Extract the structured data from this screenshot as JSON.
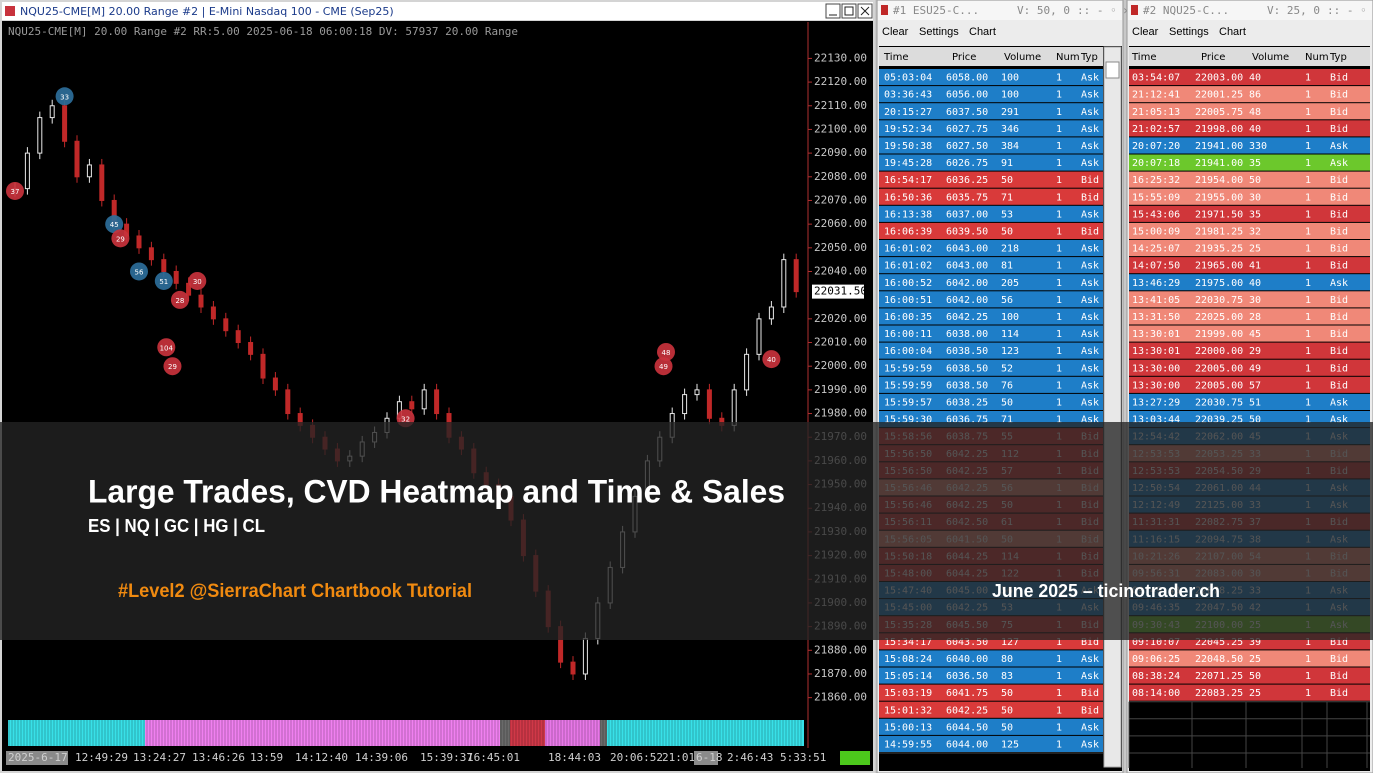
{
  "chart": {
    "title": "NQU25-CME[M]  20.00 Range #2 | E-Mini Nasdaq 100 - CME (Sep25)",
    "info": "NQU25-CME[M]  20.00 Range #2 RR:5.00 2025-06-18 06:00:18 DV: 57937 20.00 Range",
    "ylim": [
      21840,
      22142
    ],
    "yticks": [
      {
        "value": 22130,
        "label": "22130.00"
      },
      {
        "value": 22120,
        "label": "22120.00"
      },
      {
        "value": 22110,
        "label": "22110.00"
      },
      {
        "value": 22100,
        "label": "22100.00"
      },
      {
        "value": 22090,
        "label": "22090.00"
      },
      {
        "value": 22080,
        "label": "22080.00"
      },
      {
        "value": 22070,
        "label": "22070.00"
      },
      {
        "value": 22060,
        "label": "22060.00"
      },
      {
        "value": 22050,
        "label": "22050.00"
      },
      {
        "value": 22040,
        "label": "22040.00"
      },
      {
        "value": 22020,
        "label": "22020.00"
      },
      {
        "value": 22010,
        "label": "22010.00"
      },
      {
        "value": 22000,
        "label": "22000.00"
      },
      {
        "value": 21990,
        "label": "21990.00"
      },
      {
        "value": 21980,
        "label": "21980.00"
      },
      {
        "value": 21970,
        "label": "21970.00"
      },
      {
        "value": 21960,
        "label": "21960.00"
      },
      {
        "value": 21950,
        "label": "21950.00"
      },
      {
        "value": 21940,
        "label": "21940.00"
      },
      {
        "value": 21930,
        "label": "21930.00"
      },
      {
        "value": 21920,
        "label": "21920.00"
      },
      {
        "value": 21910,
        "label": "21910.00"
      },
      {
        "value": 21900,
        "label": "21900.00"
      },
      {
        "value": 21890,
        "label": "21890.00"
      },
      {
        "value": 21880,
        "label": "21880.00"
      },
      {
        "value": 21870,
        "label": "21870.00"
      },
      {
        "value": 21860,
        "label": "21860.00"
      }
    ],
    "last_price": {
      "value": 22031.5,
      "label": "22031.50"
    },
    "closes": [
      22075,
      22090,
      22105,
      22110,
      22095,
      22080,
      22085,
      22070,
      22060,
      22055,
      22050,
      22045,
      22040,
      22035,
      22030,
      22025,
      22020,
      22015,
      22010,
      22005,
      21995,
      21990,
      21980,
      21975,
      21970,
      21965,
      21960,
      21962,
      21968,
      21972,
      21978,
      21985,
      21982,
      21990,
      21980,
      21970,
      21965,
      21955,
      21950,
      21945,
      21935,
      21920,
      21905,
      21890,
      21875,
      21870,
      21885,
      21900,
      21915,
      21930,
      21945,
      21960,
      21970,
      21980,
      21988,
      21990,
      21978,
      21975,
      21990,
      22005,
      22020,
      22025,
      22045,
      22031.5
    ],
    "large_trades": [
      {
        "label": "37",
        "bar": 0,
        "price": 22074,
        "color": "#c8323c"
      },
      {
        "label": "33",
        "bar": 4,
        "price": 22114,
        "color": "#2c6e9a"
      },
      {
        "label": "45",
        "bar": 8,
        "price": 22060,
        "color": "#2c6e9a"
      },
      {
        "label": "29",
        "bar": 8.5,
        "price": 22054,
        "color": "#c8323c"
      },
      {
        "label": "56",
        "bar": 10,
        "price": 22040,
        "color": "#2c6e9a"
      },
      {
        "label": "51",
        "bar": 12,
        "price": 22036,
        "color": "#2c6e9a"
      },
      {
        "label": "28",
        "bar": 13.3,
        "price": 22028,
        "color": "#c8323c"
      },
      {
        "label": "30",
        "bar": 14.7,
        "price": 22036,
        "color": "#c8323c"
      },
      {
        "label": "104",
        "bar": 12.2,
        "price": 22008,
        "color": "#c8323c"
      },
      {
        "label": "29",
        "bar": 12.7,
        "price": 22000,
        "color": "#c8323c"
      },
      {
        "label": "32",
        "bar": 31.5,
        "price": 21978,
        "color": "#c8323c"
      },
      {
        "label": "48",
        "bar": 52.5,
        "price": 22006,
        "color": "#c8323c"
      },
      {
        "label": "49",
        "bar": 52.3,
        "price": 22000,
        "color": "#c8323c"
      },
      {
        "label": "40",
        "bar": 61,
        "price": 22003,
        "color": "#c8323c"
      }
    ],
    "time_labels": [
      "2025-6-17",
      "12:49:29",
      "13:24:27",
      "13:46:26",
      "13:59",
      "14:12:40",
      "14:39:06",
      "15:39:37",
      "16:45:01",
      "18:44:03",
      "20:06:52",
      "21:01",
      "6-18",
      "2:46:43",
      "5:33:51"
    ]
  },
  "overlay": {
    "title": "Large Trades, CVD Heatmap and Time & Sales",
    "subtitle": "ES | NQ | GC | HG | CL",
    "tag": "#Level2 @SierraChart Chartbook Tutorial",
    "credit": "June 2025 – ticinotrader.ch"
  },
  "tables": [
    {
      "title": "#1  ESU25-C...",
      "status": "V: 50, 0",
      "menu": [
        "Clear",
        "Settings",
        "Chart"
      ],
      "columns": [
        "Time",
        "Price",
        "Volume",
        "Num",
        "Typ"
      ],
      "rows": [
        [
          "05:03:04",
          "6058.00",
          "100",
          "1",
          "Ask"
        ],
        [
          "03:36:43",
          "6056.00",
          "100",
          "1",
          "Ask"
        ],
        [
          "20:15:27",
          "6037.50",
          "291",
          "1",
          "Ask"
        ],
        [
          "19:52:34",
          "6027.75",
          "346",
          "1",
          "Ask"
        ],
        [
          "19:50:38",
          "6027.50",
          "384",
          "1",
          "Ask"
        ],
        [
          "19:45:28",
          "6026.75",
          "91",
          "1",
          "Ask"
        ],
        [
          "16:54:17",
          "6036.25",
          "50",
          "1",
          "Bid"
        ],
        [
          "16:50:36",
          "6035.75",
          "71",
          "1",
          "Bid"
        ],
        [
          "16:13:38",
          "6037.00",
          "53",
          "1",
          "Ask"
        ],
        [
          "16:06:39",
          "6039.50",
          "50",
          "1",
          "Bid"
        ],
        [
          "16:01:02",
          "6043.00",
          "218",
          "1",
          "Ask"
        ],
        [
          "16:01:02",
          "6043.00",
          "81",
          "1",
          "Ask"
        ],
        [
          "16:00:52",
          "6042.00",
          "205",
          "1",
          "Ask"
        ],
        [
          "16:00:51",
          "6042.00",
          "56",
          "1",
          "Ask"
        ],
        [
          "16:00:35",
          "6042.25",
          "100",
          "1",
          "Ask"
        ],
        [
          "16:00:11",
          "6038.00",
          "114",
          "1",
          "Ask"
        ],
        [
          "16:00:04",
          "6038.50",
          "123",
          "1",
          "Ask"
        ],
        [
          "15:59:59",
          "6038.50",
          "52",
          "1",
          "Ask"
        ],
        [
          "15:59:59",
          "6038.50",
          "76",
          "1",
          "Ask"
        ],
        [
          "15:59:57",
          "6038.25",
          "50",
          "1",
          "Ask"
        ],
        [
          "15:59:30",
          "6036.75",
          "71",
          "1",
          "Ask"
        ],
        [
          "15:58:56",
          "6038.75",
          "55",
          "1",
          "Bid"
        ],
        [
          "15:56:50",
          "6042.25",
          "112",
          "1",
          "Bid"
        ],
        [
          "15:56:50",
          "6042.25",
          "57",
          "1",
          "Bid"
        ],
        [
          "15:56:46",
          "6042.25",
          "56",
          "1",
          "Bid"
        ],
        [
          "15:56:46",
          "6042.25",
          "50",
          "1",
          "Bid"
        ],
        [
          "15:56:11",
          "6042.50",
          "61",
          "1",
          "Bid"
        ],
        [
          "15:56:05",
          "6041.50",
          "50",
          "1",
          "Bid"
        ],
        [
          "15:50:18",
          "6044.25",
          "114",
          "1",
          "Bid"
        ],
        [
          "15:48:00",
          "6044.25",
          "122",
          "1",
          "Bid"
        ],
        [
          "15:47:40",
          "6045.00",
          "56",
          "1",
          "Ask"
        ],
        [
          "15:45:00",
          "6042.25",
          "53",
          "1",
          "Ask"
        ],
        [
          "15:35:28",
          "6045.50",
          "75",
          "1",
          "Bid"
        ],
        [
          "15:34:17",
          "6043.50",
          "127",
          "1",
          "Bid"
        ],
        [
          "15:08:24",
          "6040.00",
          "80",
          "1",
          "Ask"
        ],
        [
          "15:05:14",
          "6036.50",
          "83",
          "1",
          "Ask"
        ],
        [
          "15:03:19",
          "6041.75",
          "50",
          "1",
          "Bid"
        ],
        [
          "15:01:32",
          "6042.25",
          "50",
          "1",
          "Bid"
        ],
        [
          "15:00:13",
          "6044.50",
          "50",
          "1",
          "Ask"
        ],
        [
          "14:59:55",
          "6044.00",
          "125",
          "1",
          "Ask"
        ]
      ],
      "row_colors": [
        "#1e7ec8",
        "#1e7ec8",
        "#1e7ec8",
        "#1e7ec8",
        "#1e7ec8",
        "#1e7ec8",
        "#d93a3a",
        "#d93a3a",
        "#1e7ec8",
        "#d93a3a",
        "#1e7ec8",
        "#1e7ec8",
        "#1e7ec8",
        "#1e7ec8",
        "#1e7ec8",
        "#1e7ec8",
        "#1e7ec8",
        "#1e7ec8",
        "#1e7ec8",
        "#1e7ec8",
        "#1e7ec8",
        "#d93a3a",
        "#d93a3a",
        "#d93a3a",
        "#f08878",
        "#d93a3a",
        "#d93a3a",
        "#f08878",
        "#d93a3a",
        "#d93a3a",
        "#1e7ec8",
        "#1e7ec8",
        "#d93a3a",
        "#d93a3a",
        "#1e7ec8",
        "#1e7ec8",
        "#d93a3a",
        "#d93a3a",
        "#1e7ec8",
        "#1e7ec8"
      ]
    },
    {
      "title": "#2  NQU25-C...",
      "status": "V: 25, 0",
      "menu": [
        "Clear",
        "Settings",
        "Chart"
      ],
      "columns": [
        "Time",
        "Price",
        "Volume",
        "Num",
        "Typ"
      ],
      "rows": [
        [
          "03:54:07",
          "22003.00",
          "40",
          "1",
          "Bid"
        ],
        [
          "21:12:41",
          "22001.25",
          "86",
          "1",
          "Bid"
        ],
        [
          "21:05:13",
          "22005.75",
          "48",
          "1",
          "Bid"
        ],
        [
          "21:02:57",
          "21998.00",
          "40",
          "1",
          "Bid"
        ],
        [
          "20:07:20",
          "21941.00",
          "330",
          "1",
          "Ask"
        ],
        [
          "20:07:18",
          "21941.00",
          "35",
          "1",
          "Ask"
        ],
        [
          "16:25:32",
          "21954.00",
          "50",
          "1",
          "Bid"
        ],
        [
          "15:55:09",
          "21955.00",
          "30",
          "1",
          "Bid"
        ],
        [
          "15:43:06",
          "21971.50",
          "35",
          "1",
          "Bid"
        ],
        [
          "15:00:09",
          "21981.25",
          "32",
          "1",
          "Bid"
        ],
        [
          "14:25:07",
          "21935.25",
          "25",
          "1",
          "Bid"
        ],
        [
          "14:07:50",
          "21965.00",
          "41",
          "1",
          "Bid"
        ],
        [
          "13:46:29",
          "21975.00",
          "40",
          "1",
          "Ask"
        ],
        [
          "13:41:05",
          "22030.75",
          "30",
          "1",
          "Bid"
        ],
        [
          "13:31:50",
          "22025.00",
          "28",
          "1",
          "Bid"
        ],
        [
          "13:30:01",
          "21999.00",
          "45",
          "1",
          "Bid"
        ],
        [
          "13:30:01",
          "22000.00",
          "29",
          "1",
          "Bid"
        ],
        [
          "13:30:00",
          "22005.00",
          "49",
          "1",
          "Bid"
        ],
        [
          "13:30:00",
          "22005.00",
          "57",
          "1",
          "Bid"
        ],
        [
          "13:27:29",
          "22030.75",
          "51",
          "1",
          "Ask"
        ],
        [
          "13:03:44",
          "22039.25",
          "50",
          "1",
          "Ask"
        ],
        [
          "12:54:42",
          "22062.00",
          "45",
          "1",
          "Ask"
        ],
        [
          "12:53:53",
          "22053.25",
          "33",
          "1",
          "Bid"
        ],
        [
          "12:53:53",
          "22054.50",
          "29",
          "1",
          "Bid"
        ],
        [
          "12:50:54",
          "22061.00",
          "44",
          "1",
          "Ask"
        ],
        [
          "12:12:49",
          "22125.00",
          "33",
          "1",
          "Ask"
        ],
        [
          "11:31:31",
          "22082.75",
          "37",
          "1",
          "Bid"
        ],
        [
          "11:16:15",
          "22094.75",
          "38",
          "1",
          "Ask"
        ],
        [
          "10:21:26",
          "22107.00",
          "54",
          "1",
          "Bid"
        ],
        [
          "09:56:31",
          "22083.00",
          "30",
          "1",
          "Bid"
        ],
        [
          "09:49:43",
          "22078.25",
          "33",
          "1",
          "Ask"
        ],
        [
          "09:46:35",
          "22047.50",
          "42",
          "1",
          "Ask"
        ],
        [
          "09:30:43",
          "22100.00",
          "25",
          "1",
          "Ask"
        ],
        [
          "09:10:07",
          "22045.25",
          "39",
          "1",
          "Bid"
        ],
        [
          "09:06:25",
          "22048.50",
          "25",
          "1",
          "Bid"
        ],
        [
          "08:38:24",
          "22071.25",
          "50",
          "1",
          "Bid"
        ],
        [
          "08:14:00",
          "22083.25",
          "25",
          "1",
          "Bid"
        ]
      ],
      "row_colors": [
        "#d0363a",
        "#f08878",
        "#f08878",
        "#d0363a",
        "#1e7ec8",
        "#6cc82c",
        "#f08878",
        "#f08878",
        "#d0363a",
        "#f08878",
        "#f08878",
        "#d0363a",
        "#1e7ec8",
        "#f08878",
        "#f08878",
        "#f08878",
        "#d0363a",
        "#d0363a",
        "#d0363a",
        "#1e7ec8",
        "#1e7ec8",
        "#1e7ec8",
        "#f08878",
        "#d0363a",
        "#1e7ec8",
        "#1e7ec8",
        "#d0363a",
        "#1e7ec8",
        "#f08878",
        "#f08878",
        "#1e7ec8",
        "#1e7ec8",
        "#6cc82c",
        "#d0363a",
        "#f08878",
        "#d0363a",
        "#d0363a"
      ]
    }
  ]
}
